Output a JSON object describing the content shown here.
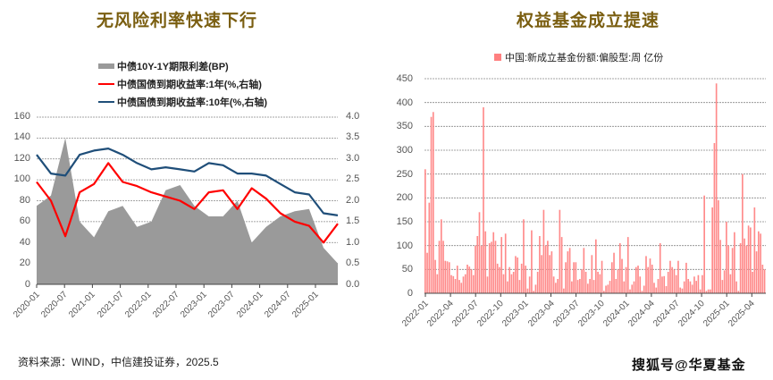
{
  "left_panel": {
    "title": "无风险利率快速下行",
    "legend": [
      {
        "label": "中债10Y-1Y期限利差(BP)",
        "color": "#9a9a9a",
        "type": "area"
      },
      {
        "label": "中债国债到期收益率:1年(%,右轴)",
        "color": "#ff0000",
        "type": "line"
      },
      {
        "label": "中债国债到期收益率:10年(%,右轴)",
        "color": "#1f4e79",
        "type": "line"
      }
    ],
    "y_left_ticks": [
      "160",
      "140",
      "120",
      "100",
      "80",
      "60",
      "40",
      "20",
      "0"
    ],
    "y_right_ticks": [
      "4.0",
      "3.5",
      "3.0",
      "2.5",
      "2.0",
      "1.5",
      "1.0",
      "0.5",
      "0.0"
    ],
    "x_ticks": [
      "2020-01",
      "2020-07",
      "2021-01",
      "2021-07",
      "2022-01",
      "2022-07",
      "2023-01",
      "2023-07",
      "2024-01",
      "2024-07",
      "2025-01"
    ]
  },
  "right_panel": {
    "title": "权益基金成立提速",
    "legend": [
      {
        "label": "中国:新成立基金份额:偏股型:周 亿份",
        "color": "#ff8080"
      }
    ],
    "y_ticks": [
      "450",
      "400",
      "350",
      "300",
      "250",
      "200",
      "150",
      "100",
      "50",
      "0"
    ],
    "x_ticks": [
      "2022-01",
      "2022-04",
      "2022-07",
      "2022-10",
      "2023-01",
      "2023-04",
      "2023-07",
      "2023-10",
      "2024-01",
      "2024-04",
      "2024-07",
      "2024-10",
      "2025-01",
      "2025-04"
    ]
  },
  "footer": {
    "source": "资料来源：WIND，中信建投证券，2025.5",
    "watermark": "搜狐号@华夏基金"
  },
  "chart_data": [
    {
      "type": "area+line",
      "title": "无风险利率快速下行",
      "x": [
        "2020-01",
        "2020-04",
        "2020-07",
        "2020-10",
        "2021-01",
        "2021-04",
        "2021-07",
        "2021-10",
        "2022-01",
        "2022-04",
        "2022-07",
        "2022-10",
        "2023-01",
        "2023-04",
        "2023-07",
        "2023-10",
        "2024-01",
        "2024-04",
        "2024-07",
        "2024-10",
        "2025-01",
        "2025-04"
      ],
      "series": [
        {
          "name": "中债10Y-1Y期限利差(BP)",
          "axis": "left",
          "type": "area",
          "values": [
            75,
            85,
            140,
            60,
            45,
            70,
            75,
            55,
            60,
            90,
            95,
            75,
            65,
            65,
            80,
            40,
            55,
            65,
            70,
            72,
            35,
            20
          ]
        },
        {
          "name": "中债国债到期收益率:1年(%,右轴)",
          "axis": "right",
          "type": "line",
          "values": [
            2.45,
            2.0,
            1.15,
            2.2,
            2.4,
            2.9,
            2.45,
            2.35,
            2.2,
            2.1,
            2.0,
            1.8,
            2.2,
            2.25,
            1.8,
            2.3,
            2.05,
            1.7,
            1.5,
            1.4,
            1.0,
            1.45
          ]
        },
        {
          "name": "中债国债到期收益率:10年(%,右轴)",
          "axis": "right",
          "type": "line",
          "values": [
            3.1,
            2.65,
            2.6,
            3.1,
            3.2,
            3.25,
            3.1,
            2.9,
            2.75,
            2.8,
            2.75,
            2.7,
            2.9,
            2.85,
            2.65,
            2.65,
            2.6,
            2.4,
            2.2,
            2.15,
            1.7,
            1.65
          ]
        }
      ],
      "ylim_left": [
        0,
        160
      ],
      "ylim_right": [
        0,
        4.0
      ],
      "ylabel_left": "BP",
      "ylabel_right": "%",
      "grid": true,
      "legend_position": "top"
    },
    {
      "type": "bar",
      "title": "权益基金成立提速",
      "series_name": "中国:新成立基金份额:偏股型:周 亿份",
      "ylim": [
        0,
        450
      ],
      "grid": true,
      "legend_position": "top",
      "x_start": "2022-01",
      "x_end": "2025-05",
      "values": [
        260,
        85,
        190,
        370,
        380,
        70,
        40,
        110,
        155,
        110,
        68,
        67,
        65,
        38,
        36,
        30,
        58,
        28,
        22,
        35,
        40,
        60,
        56,
        50,
        38,
        100,
        120,
        170,
        100,
        390,
        130,
        35,
        105,
        108,
        128,
        110,
        62,
        55,
        118,
        40,
        125,
        25,
        55,
        40,
        45,
        78,
        75,
        28,
        62,
        155,
        58,
        10,
        35,
        132,
        5,
        18,
        45,
        120,
        80,
        175,
        100,
        110,
        80,
        88,
        35,
        22,
        30,
        175,
        118,
        10,
        65,
        88,
        95,
        25,
        65,
        65,
        28,
        30,
        50,
        95,
        45,
        20,
        30,
        80,
        28,
        113,
        45,
        40,
        68,
        5,
        16,
        18,
        26,
        65,
        85,
        30,
        50,
        105,
        72,
        25,
        55,
        118,
        8,
        18,
        25,
        55,
        58,
        35,
        5,
        16,
        78,
        55,
        73,
        60,
        22,
        12,
        30,
        105,
        35,
        36,
        15,
        45,
        68,
        55,
        50,
        38,
        68,
        12,
        10,
        25,
        64,
        30,
        25,
        18,
        35,
        26,
        38,
        8,
        38,
        205,
        5,
        8,
        8,
        180,
        315,
        440,
        195,
        112,
        28,
        48,
        150,
        100,
        40,
        95,
        128,
        25,
        5,
        105,
        250,
        115,
        100,
        142,
        138,
        45,
        180,
        88,
        130,
        125,
        60,
        50
      ]
    }
  ]
}
